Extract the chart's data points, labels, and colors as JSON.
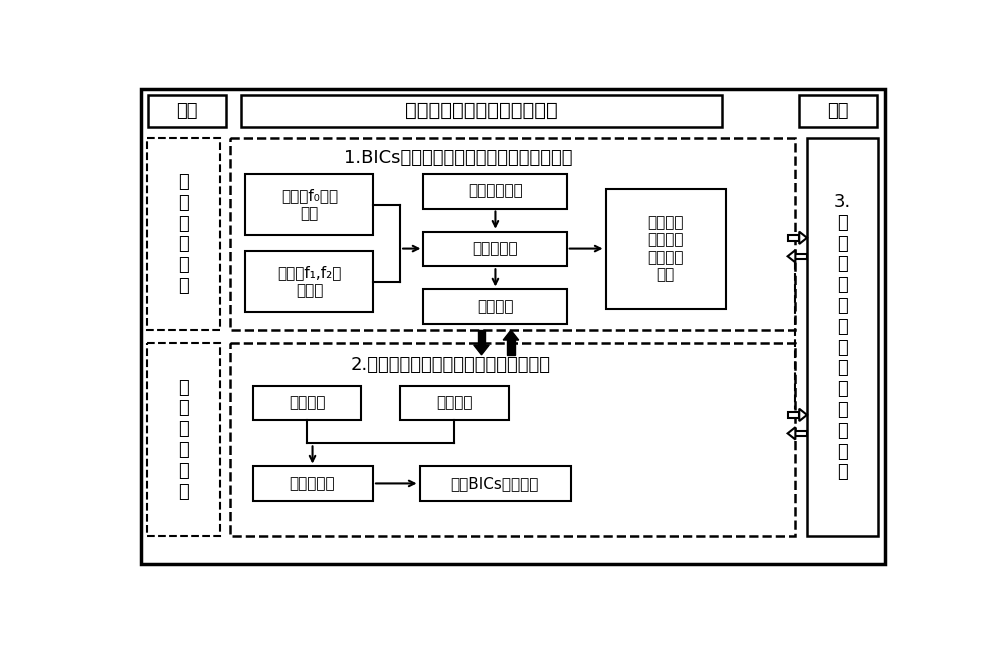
{
  "bg_color": "#ffffff",
  "title_top": "人工、可调、高效非线性响应",
  "label_mubiao": "目标",
  "label_yanzheng": "验证",
  "label_lilun": "理\n论\n基\n础\n支\n撑",
  "label_guanjian": "关\n键\n技\n术\n方\n法",
  "label_3": "3.\n非\n线\n性\n超\n构\n表\n面\n的\n设\n计\n与\n测\n试",
  "section1_title": "1.BICs产生人工非线性响应的物理机制方案",
  "section2_title": "2.超构表面对非线性响应的调控方法研究",
  "box_danjipinf0": "单基频f₀电磁\n共振",
  "box_shuangjipin": "双基频f₁,f₂电\n磁共振",
  "box_cipian": "磁偶极矩分析",
  "box_luolunzi": "洛伦兹模型",
  "box_weirao": "微扰理论",
  "box_yingxiang": "影响非线\n性响应过\n程的物理\n参量",
  "box_zhijie": "直接激发",
  "box_jianjie": "间接激发",
  "box_feixianxing": "非线性响应",
  "box_wanmei": "完美BICs结果对比"
}
